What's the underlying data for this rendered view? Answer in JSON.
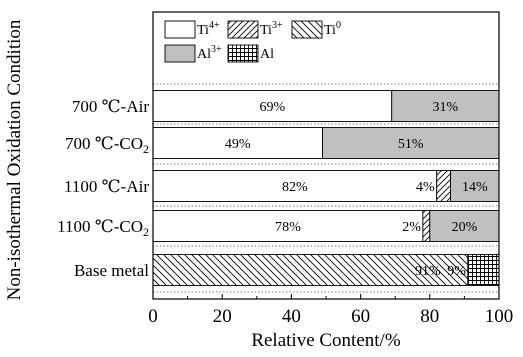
{
  "chart_data": {
    "type": "bar",
    "orientation": "horizontal",
    "stacked": true,
    "xlabel": "Relative Content/%",
    "ylabel": "Non-isothermal Oxidation Condition",
    "xlim": [
      0,
      100
    ],
    "xticks": [
      "0",
      "20",
      "40",
      "60",
      "80",
      "100"
    ],
    "categories": [
      {
        "main": "700 ℃-Air",
        "sub": ""
      },
      {
        "main": "700 ℃-CO",
        "sub": "2"
      },
      {
        "main": "1100 ℃-Air",
        "sub": ""
      },
      {
        "main": "1100 ℃-CO",
        "sub": "2"
      },
      {
        "main": "Base metal",
        "sub": ""
      }
    ],
    "series": [
      {
        "name": "Ti",
        "sup": "4+",
        "pattern": "white",
        "values": [
          69,
          49,
          82,
          78,
          0
        ],
        "labels": [
          "69%",
          "49%",
          "82%",
          "78%",
          ""
        ]
      },
      {
        "name": "Ti",
        "sup": "3+",
        "pattern": "diag-fwd",
        "values": [
          0,
          0,
          4,
          2,
          0
        ],
        "labels": [
          "",
          "",
          "4%",
          "2%",
          ""
        ]
      },
      {
        "name": "Ti",
        "sup": "0",
        "pattern": "diag-back",
        "values": [
          0,
          0,
          0,
          0,
          91
        ],
        "labels": [
          "",
          "",
          "",
          "",
          "91%"
        ]
      },
      {
        "name": "Al",
        "sup": "3+",
        "pattern": "gray",
        "values": [
          31,
          51,
          14,
          20,
          0
        ],
        "labels": [
          "31%",
          "51%",
          "14%",
          "20%",
          ""
        ]
      },
      {
        "name": "Al",
        "sup": "",
        "pattern": "grid",
        "values": [
          0,
          0,
          0,
          0,
          9
        ],
        "labels": [
          "",
          "",
          "",
          "",
          "9%"
        ]
      }
    ],
    "legend_position": "top"
  }
}
